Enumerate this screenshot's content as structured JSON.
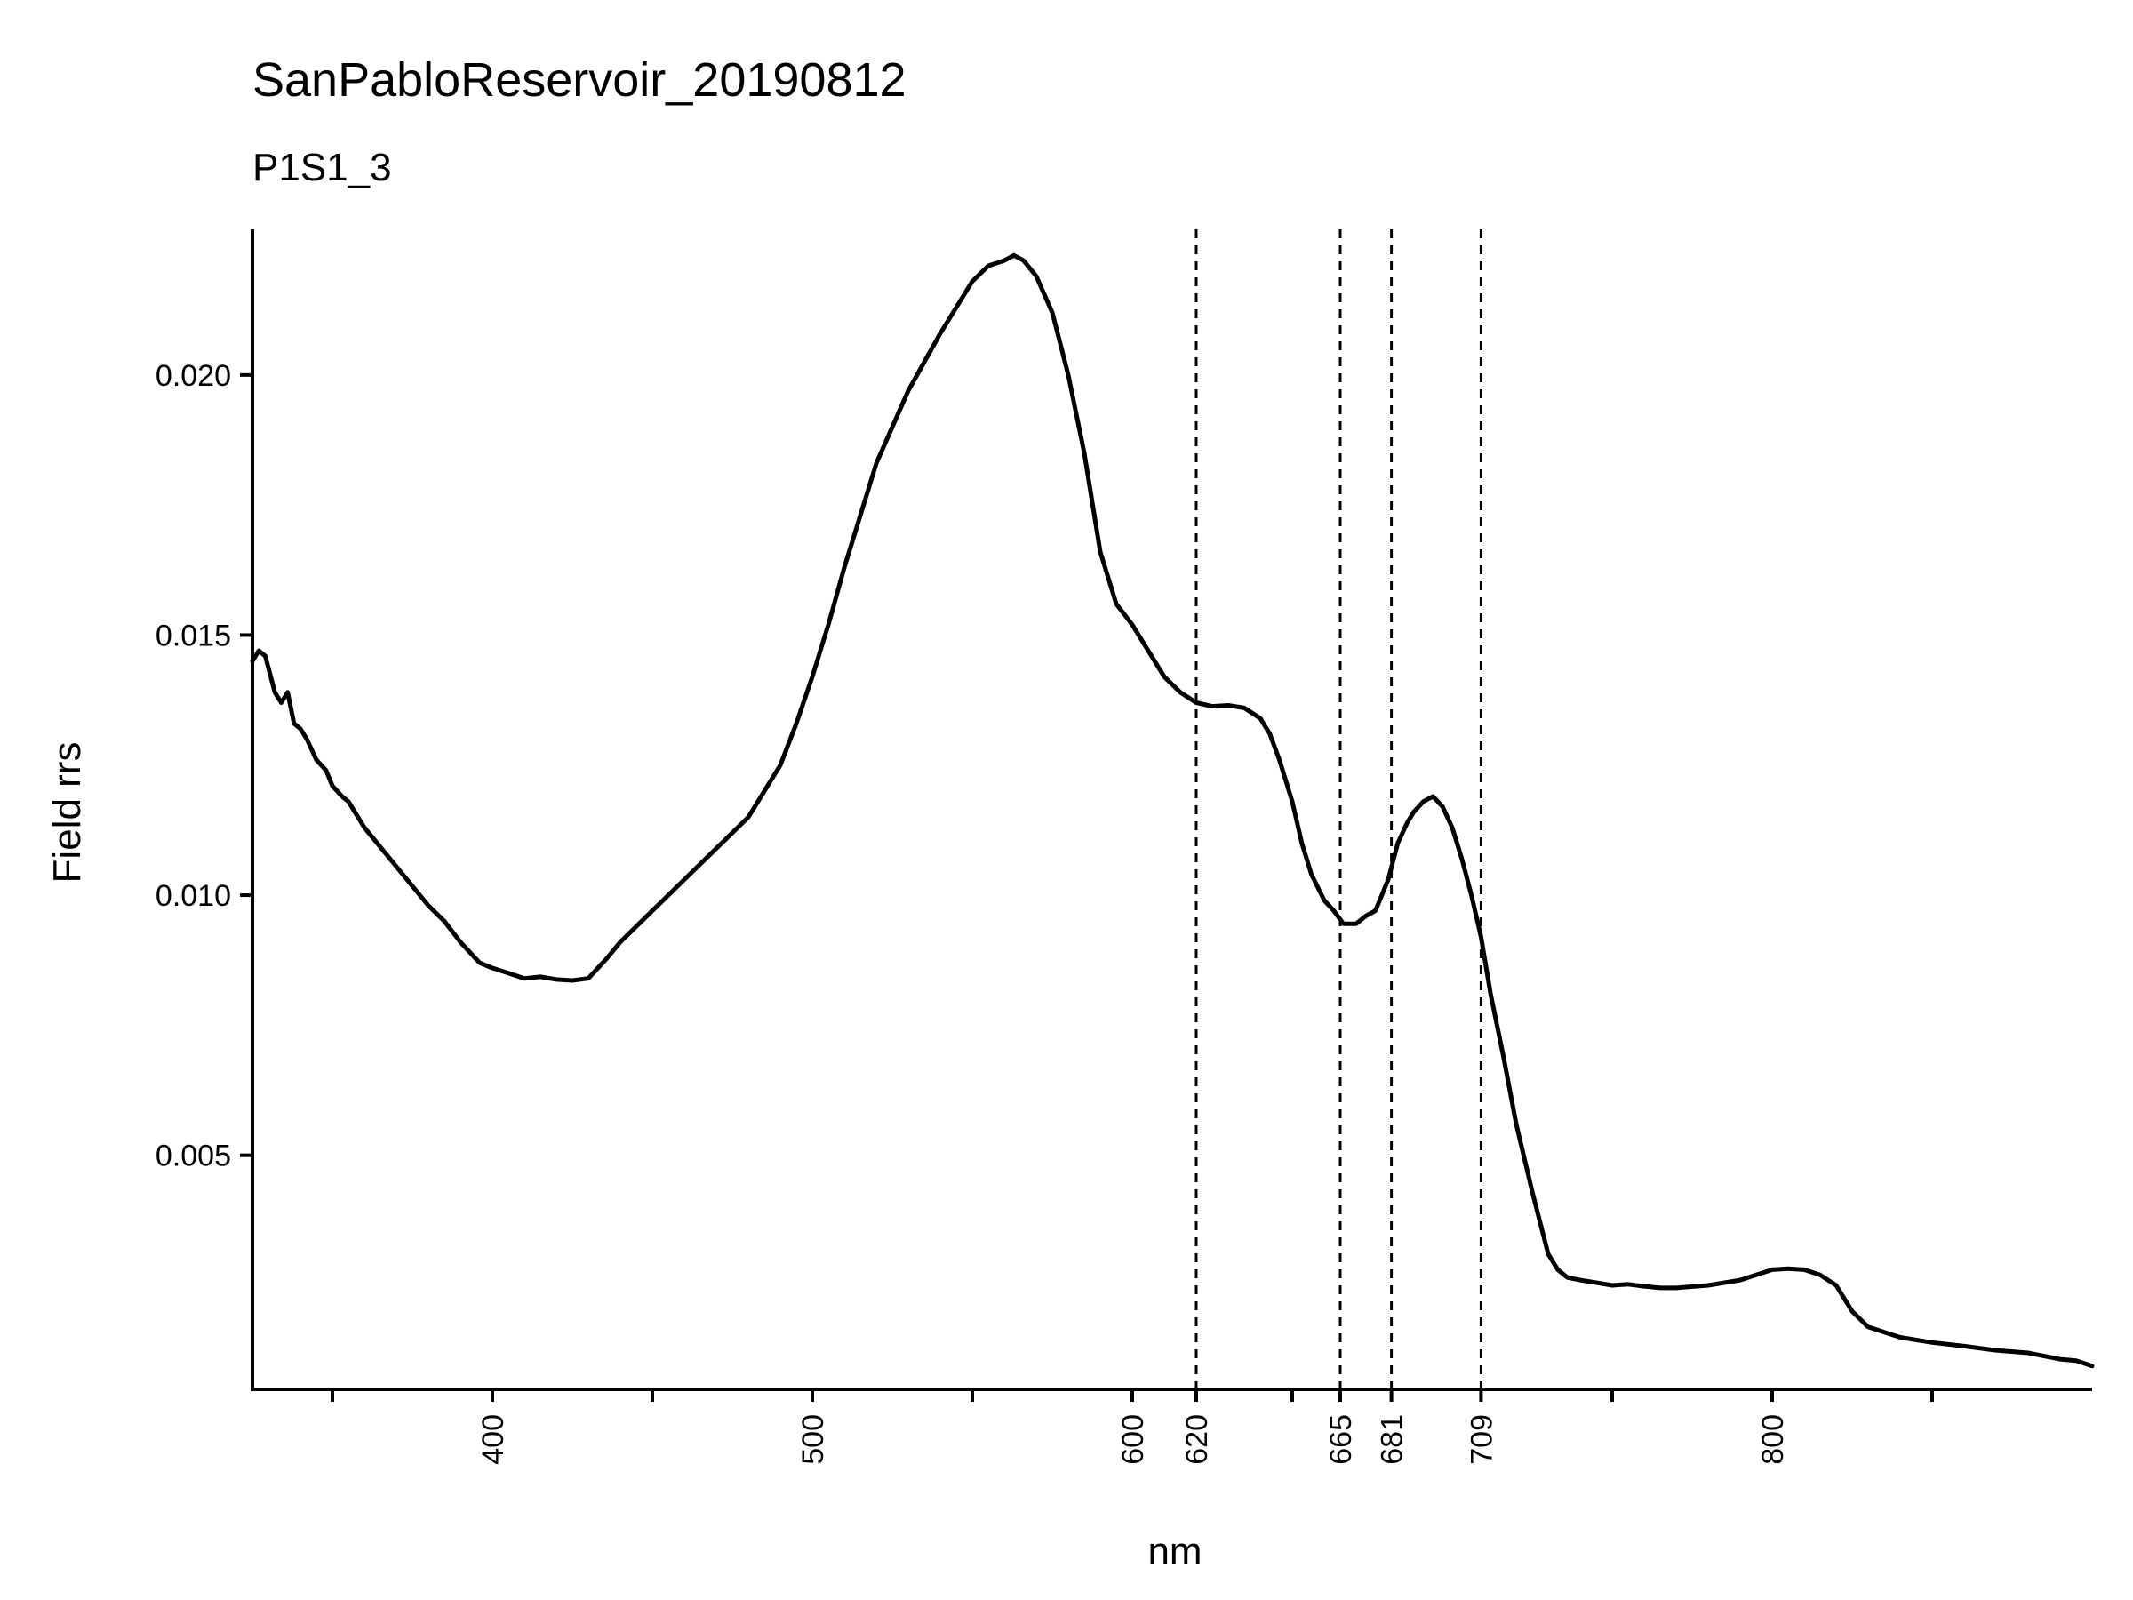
{
  "chart_data": {
    "type": "line",
    "title": "SanPabloReservoir_20190812",
    "subtitle": "P1S1_3",
    "xlabel": "nm",
    "ylabel": "Field rrs",
    "xlim": [
      325,
      900
    ],
    "ylim": [
      0.0005,
      0.0228
    ],
    "x_ticks": [
      400,
      500,
      600,
      620,
      665,
      681,
      709,
      800
    ],
    "x_minor_ticks": [
      350,
      450,
      550,
      650,
      750,
      850
    ],
    "y_ticks": [
      0.005,
      0.01,
      0.015,
      0.02
    ],
    "y_tick_labels": [
      "0.005",
      "0.010",
      "0.015",
      "0.020"
    ],
    "vlines": [
      620,
      665,
      681,
      709
    ],
    "grid": false,
    "legend": "none",
    "series": [
      {
        "color": "#000000",
        "x": [
          325,
          327,
          329,
          332,
          334,
          336,
          338,
          340,
          342,
          345,
          348,
          350,
          353,
          355,
          358,
          360,
          364,
          368,
          372,
          376,
          380,
          385,
          390,
          393,
          396,
          400,
          405,
          410,
          415,
          420,
          425,
          430,
          433,
          436,
          440,
          445,
          450,
          455,
          460,
          470,
          480,
          490,
          495,
          500,
          505,
          510,
          515,
          520,
          530,
          540,
          550,
          555,
          560,
          563,
          566,
          570,
          575,
          580,
          585,
          590,
          595,
          600,
          603,
          606,
          610,
          615,
          620,
          625,
          630,
          635,
          640,
          643,
          646,
          650,
          653,
          656,
          660,
          663,
          666,
          670,
          673,
          676,
          680,
          683,
          686,
          688,
          691,
          694,
          697,
          700,
          703,
          706,
          709,
          712,
          716,
          720,
          725,
          730,
          733,
          736,
          740,
          745,
          750,
          755,
          760,
          765,
          770,
          780,
          790,
          795,
          800,
          805,
          810,
          815,
          820,
          825,
          830,
          840,
          850,
          860,
          870,
          880,
          890,
          895,
          900
        ],
        "y": [
          0.0145,
          0.0147,
          0.0146,
          0.0139,
          0.0137,
          0.0139,
          0.0133,
          0.0132,
          0.013,
          0.0126,
          0.0124,
          0.0121,
          0.0119,
          0.0118,
          0.0115,
          0.0113,
          0.011,
          0.0107,
          0.0104,
          0.0101,
          0.0098,
          0.0095,
          0.0091,
          0.0089,
          0.0087,
          0.0086,
          0.0085,
          0.0084,
          0.00843,
          0.00838,
          0.00836,
          0.0084,
          0.0086,
          0.0088,
          0.0091,
          0.0094,
          0.0097,
          0.01,
          0.0103,
          0.0109,
          0.0115,
          0.0125,
          0.0133,
          0.0142,
          0.0152,
          0.0163,
          0.0173,
          0.0183,
          0.0197,
          0.0208,
          0.0218,
          0.0221,
          0.0222,
          0.0223,
          0.0222,
          0.0219,
          0.0212,
          0.02,
          0.0185,
          0.0166,
          0.0156,
          0.0152,
          0.0149,
          0.0146,
          0.0142,
          0.0139,
          0.0137,
          0.01363,
          0.01365,
          0.0136,
          0.0134,
          0.0131,
          0.0126,
          0.0118,
          0.011,
          0.0104,
          0.0099,
          0.0097,
          0.00945,
          0.00945,
          0.0096,
          0.0097,
          0.0103,
          0.011,
          0.0114,
          0.0116,
          0.0118,
          0.0119,
          0.0117,
          0.0113,
          0.0107,
          0.01,
          0.0092,
          0.0081,
          0.0069,
          0.0056,
          0.0043,
          0.0031,
          0.0028,
          0.00265,
          0.0026,
          0.00255,
          0.0025,
          0.00252,
          0.00248,
          0.00245,
          0.00245,
          0.0025,
          0.0026,
          0.0027,
          0.0028,
          0.00282,
          0.0028,
          0.0027,
          0.0025,
          0.002,
          0.0017,
          0.0015,
          0.0014,
          0.00133,
          0.00125,
          0.0012,
          0.00108,
          0.00105,
          0.00095
        ]
      }
    ]
  }
}
